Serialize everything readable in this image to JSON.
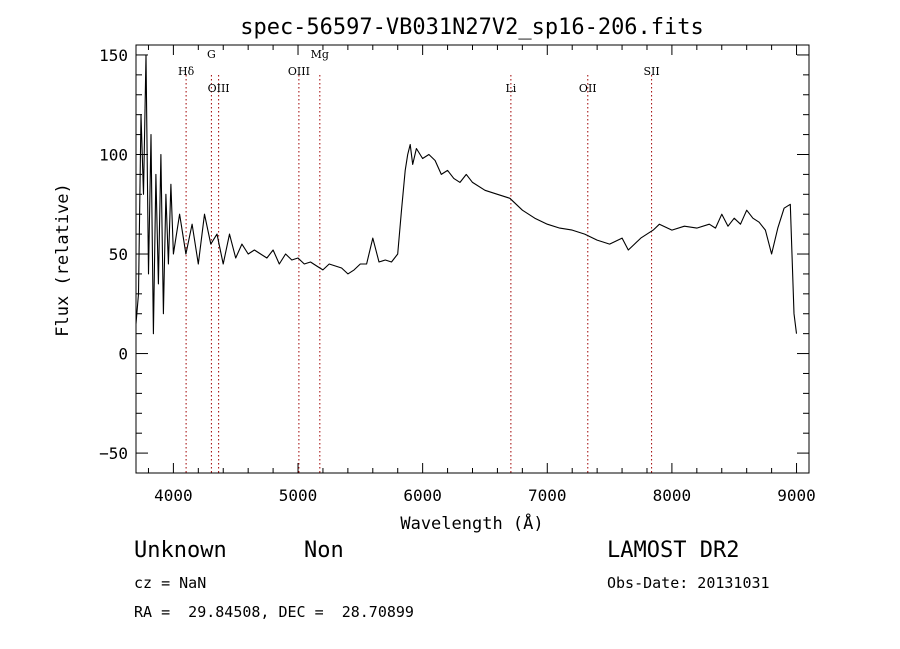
{
  "chart_data": {
    "type": "line",
    "title": "spec-56597-VB031N27V2_sp16-206.fits",
    "xlabel": "Wavelength (Å)",
    "ylabel": "Flux (relative)",
    "xlim": [
      3700,
      9100
    ],
    "ylim": [
      -60,
      155
    ],
    "xticks": [
      4000,
      5000,
      6000,
      7000,
      8000,
      9000
    ],
    "yticks": [
      -50,
      0,
      50,
      100,
      150
    ],
    "grid": false,
    "series": [
      {
        "color": "#000000",
        "x": [
          3700,
          3720,
          3740,
          3760,
          3780,
          3800,
          3820,
          3840,
          3860,
          3880,
          3900,
          3920,
          3940,
          3960,
          3980,
          4000,
          4050,
          4100,
          4150,
          4200,
          4250,
          4300,
          4350,
          4400,
          4450,
          4500,
          4550,
          4600,
          4650,
          4700,
          4750,
          4800,
          4850,
          4900,
          4950,
          5000,
          5050,
          5100,
          5150,
          5200,
          5250,
          5300,
          5350,
          5400,
          5450,
          5500,
          5550,
          5600,
          5650,
          5700,
          5750,
          5800,
          5830,
          5860,
          5880,
          5900,
          5920,
          5950,
          6000,
          6050,
          6100,
          6150,
          6200,
          6250,
          6300,
          6350,
          6400,
          6500,
          6600,
          6700,
          6800,
          6900,
          7000,
          7100,
          7200,
          7300,
          7400,
          7450,
          7500,
          7600,
          7650,
          7700,
          7750,
          7800,
          7850,
          7900,
          8000,
          8100,
          8200,
          8300,
          8350,
          8400,
          8450,
          8500,
          8550,
          8600,
          8650,
          8700,
          8750,
          8800,
          8850,
          8900,
          8950,
          8980,
          9000
        ],
        "y": [
          15,
          30,
          120,
          80,
          150,
          40,
          110,
          10,
          90,
          35,
          100,
          20,
          80,
          45,
          85,
          50,
          70,
          50,
          65,
          45,
          70,
          55,
          60,
          45,
          60,
          48,
          55,
          50,
          52,
          50,
          48,
          52,
          45,
          50,
          47,
          48,
          45,
          46,
          44,
          42,
          45,
          44,
          43,
          40,
          42,
          45,
          45,
          58,
          46,
          47,
          46,
          50,
          72,
          92,
          100,
          105,
          95,
          103,
          98,
          100,
          97,
          90,
          92,
          88,
          86,
          90,
          86,
          82,
          80,
          78,
          72,
          68,
          65,
          63,
          62,
          60,
          57,
          56,
          55,
          58,
          52,
          55,
          58,
          60,
          62,
          65,
          62,
          64,
          63,
          65,
          63,
          70,
          64,
          68,
          65,
          72,
          68,
          66,
          62,
          50,
          63,
          73,
          75,
          20,
          10
        ]
      }
    ],
    "line_markers": [
      {
        "label": "Hδ",
        "x": 4102
      },
      {
        "label": "G",
        "x": 4305
      },
      {
        "label": "OIII",
        "x": 4363
      },
      {
        "label": "OIII",
        "x": 5007
      },
      {
        "label": "Mg",
        "x": 5175
      },
      {
        "label": "Li",
        "x": 6708
      },
      {
        "label": "OII",
        "x": 7325
      },
      {
        "label": "SII",
        "x": 7837
      }
    ]
  },
  "info": {
    "class": "Unknown",
    "subclass": "Non",
    "survey": "LAMOST DR2",
    "cz": "cz = NaN",
    "obs_date": "Obs-Date: 20131031",
    "coords": "RA =  29.84508, DEC =  28.70899"
  }
}
